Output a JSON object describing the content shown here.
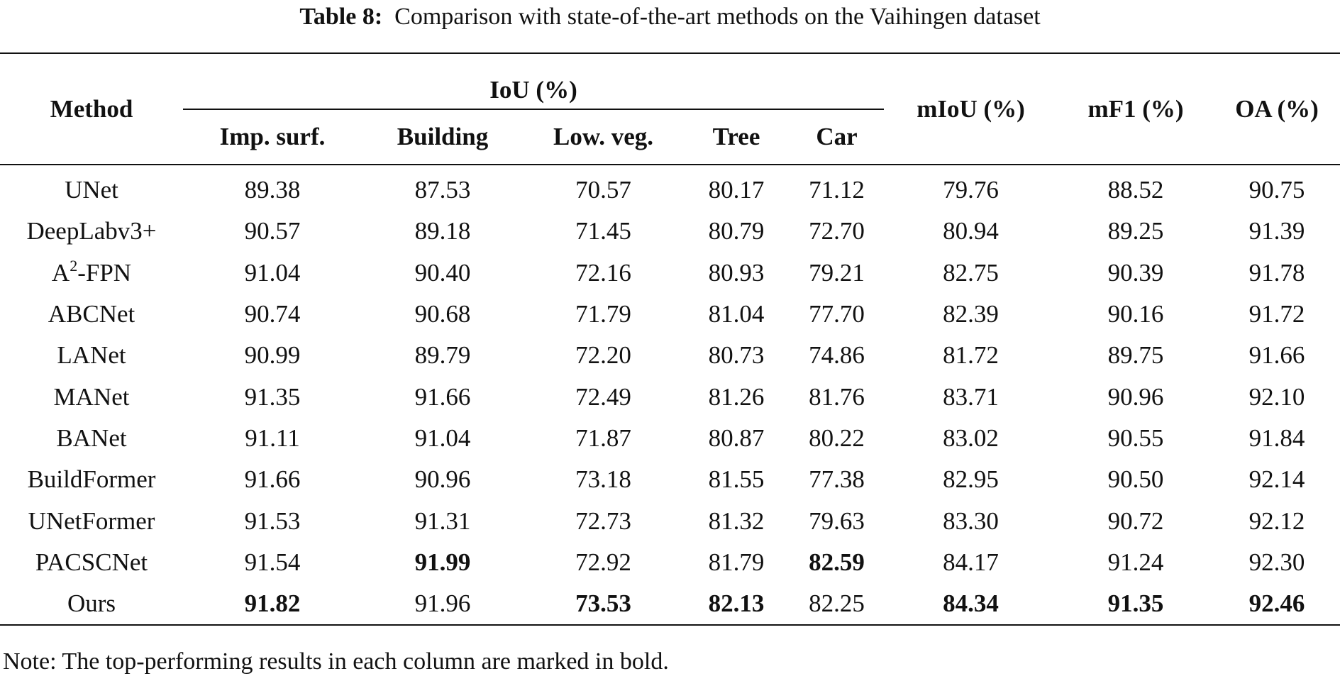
{
  "caption": {
    "label": "Table 8:",
    "text": "Comparison with state-of-the-art methods on the Vaihingen dataset"
  },
  "header": {
    "method": "Method",
    "iou_group": "IoU (%)",
    "iou_columns": [
      "Imp. surf.",
      "Building",
      "Low. veg.",
      "Tree",
      "Car"
    ],
    "miou": "mIoU (%)",
    "mf1": "mF1 (%)",
    "oa": "OA (%)"
  },
  "rows": [
    {
      "method": "UNet",
      "sup": "",
      "suffix": "",
      "values": [
        "89.38",
        "87.53",
        "70.57",
        "80.17",
        "71.12",
        "79.76",
        "88.52",
        "90.75"
      ],
      "bold": []
    },
    {
      "method": "DeepLabv3+",
      "sup": "",
      "suffix": "",
      "values": [
        "90.57",
        "89.18",
        "71.45",
        "80.79",
        "72.70",
        "80.94",
        "89.25",
        "91.39"
      ],
      "bold": []
    },
    {
      "method": "A",
      "sup": "2",
      "suffix": "-FPN",
      "values": [
        "91.04",
        "90.40",
        "72.16",
        "80.93",
        "79.21",
        "82.75",
        "90.39",
        "91.78"
      ],
      "bold": []
    },
    {
      "method": "ABCNet",
      "sup": "",
      "suffix": "",
      "values": [
        "90.74",
        "90.68",
        "71.79",
        "81.04",
        "77.70",
        "82.39",
        "90.16",
        "91.72"
      ],
      "bold": []
    },
    {
      "method": "LANet",
      "sup": "",
      "suffix": "",
      "values": [
        "90.99",
        "89.79",
        "72.20",
        "80.73",
        "74.86",
        "81.72",
        "89.75",
        "91.66"
      ],
      "bold": []
    },
    {
      "method": "MANet",
      "sup": "",
      "suffix": "",
      "values": [
        "91.35",
        "91.66",
        "72.49",
        "81.26",
        "81.76",
        "83.71",
        "90.96",
        "92.10"
      ],
      "bold": []
    },
    {
      "method": "BANet",
      "sup": "",
      "suffix": "",
      "values": [
        "91.11",
        "91.04",
        "71.87",
        "80.87",
        "80.22",
        "83.02",
        "90.55",
        "91.84"
      ],
      "bold": []
    },
    {
      "method": "BuildFormer",
      "sup": "",
      "suffix": "",
      "values": [
        "91.66",
        "90.96",
        "73.18",
        "81.55",
        "77.38",
        "82.95",
        "90.50",
        "92.14"
      ],
      "bold": []
    },
    {
      "method": "UNetFormer",
      "sup": "",
      "suffix": "",
      "values": [
        "91.53",
        "91.31",
        "72.73",
        "81.32",
        "79.63",
        "83.30",
        "90.72",
        "92.12"
      ],
      "bold": []
    },
    {
      "method": "PACSCNet",
      "sup": "",
      "suffix": "",
      "values": [
        "91.54",
        "91.99",
        "72.92",
        "81.79",
        "82.59",
        "84.17",
        "91.24",
        "92.30"
      ],
      "bold": [
        1,
        4
      ]
    },
    {
      "method": "Ours",
      "sup": "",
      "suffix": "",
      "values": [
        "91.82",
        "91.96",
        "73.53",
        "82.13",
        "82.25",
        "84.34",
        "91.35",
        "92.46"
      ],
      "bold": [
        0,
        2,
        3,
        5,
        6,
        7
      ]
    }
  ],
  "note": "Note: The top-performing results in each column are marked in bold."
}
